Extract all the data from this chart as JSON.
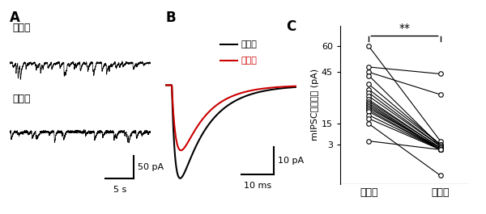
{
  "panel_A_label": "A",
  "panel_B_label": "B",
  "panel_C_label": "C",
  "trace1_label": "兴奮前",
  "trace2_label": "兴奮後",
  "ylabel_C": "mIPSCの中央値 (pA)",
  "xtick_labels_C": [
    "兴奮前",
    "兴奮後"
  ],
  "scale_bar_A_x": "5 s",
  "scale_bar_A_y": "50 pA",
  "scale_bar_B_x": "10 ms",
  "scale_bar_B_y": "10 pA",
  "sig_label": "**",
  "paired_data": [
    [
      60,
      5
    ],
    [
      48,
      44
    ],
    [
      45,
      32
    ],
    [
      43,
      2
    ],
    [
      38,
      3
    ],
    [
      35,
      3
    ],
    [
      33,
      2
    ],
    [
      31,
      2
    ],
    [
      29,
      1
    ],
    [
      28,
      1
    ],
    [
      27,
      0
    ],
    [
      26,
      0
    ],
    [
      25,
      0
    ],
    [
      24,
      1
    ],
    [
      23,
      0
    ],
    [
      22,
      0
    ],
    [
      20,
      0
    ],
    [
      18,
      0
    ],
    [
      15,
      -15
    ],
    [
      5,
      0
    ]
  ],
  "bg_color": "#ffffff",
  "line_color_black": "#000000",
  "line_color_red": "#cc0000"
}
